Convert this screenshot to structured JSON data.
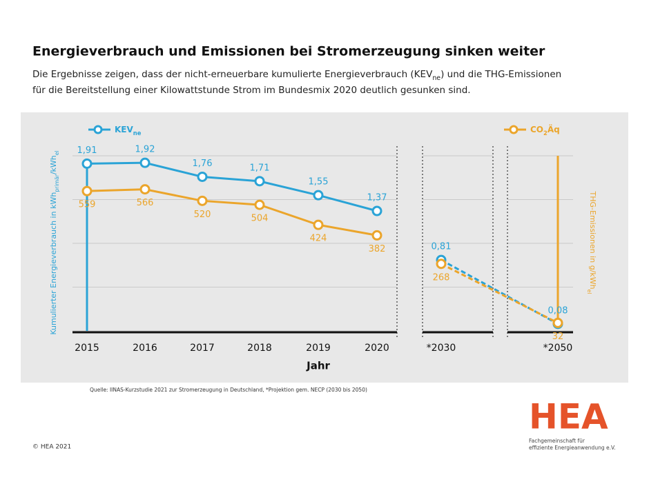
{
  "header": {
    "title": "Energieverbrauch und Emissionen bei Stromerzeugung sinken weiter",
    "subtitle": [
      [
        "Die Ergebnisse zeigen, dass der nicht-erneuerbare kumulierte Energieverbrauch (KEV",
        "ne",
        ") und die THG-Emissionen"
      ],
      [
        "für die Bereitstellung einer Kilowattstunde Strom im Bundesmix 2020 deutlich gesunken sind."
      ]
    ]
  },
  "chart_data": {
    "type": "line",
    "x_axis_title": "Jahr",
    "y_axis_title": [
      "Kumulierter Energieverbrauch in kWh",
      "primär",
      "/kWh",
      "el"
    ],
    "y2_axis_title": [
      "THG-Emissionen in g/kWh",
      "el"
    ],
    "categories": [
      "2015",
      "2016",
      "2017",
      "2018",
      "2019",
      "2020",
      "*2030",
      "*2050"
    ],
    "ylim": [
      0,
      2
    ],
    "yticks": [
      0,
      0.5,
      1,
      1.5,
      2
    ],
    "y2lim": [
      0,
      700
    ],
    "grid": true,
    "series": [
      {
        "name": [
          "KEV",
          "ne"
        ],
        "color": "#2aa3d6",
        "values": [
          1.91,
          1.92,
          1.76,
          1.71,
          1.55,
          1.37,
          0.81,
          0.08
        ],
        "value_labels": [
          "1,91",
          "1,92",
          "1,76",
          "1,71",
          "1,55",
          "1,37",
          "0,81",
          "0,08"
        ]
      },
      {
        "name": [
          "CO",
          "2",
          "Äq"
        ],
        "color": "#eba52b",
        "axis": "y2",
        "values": [
          559,
          566,
          520,
          504,
          424,
          382,
          268,
          32
        ]
      }
    ]
  },
  "source": "Quelle: IINAS-Kurzstudie 2021 zur Stromerzeugung in Deutschland, *Projektion gem. NECP (2030 bis 2050)",
  "copyright": "© HEA 2021",
  "logo": {
    "text": "HEA",
    "tagline": [
      "Fachgemeinschaft für",
      "effiziente Energieanwendung e.V."
    ]
  }
}
